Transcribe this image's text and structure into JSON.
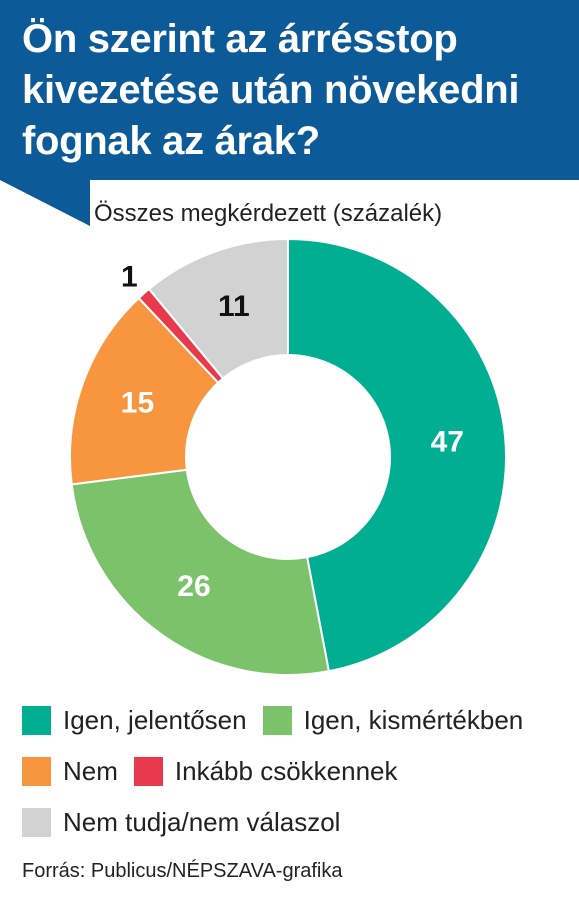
{
  "title": "Ön szerint az árrésstop kivezetése után növekedni fognak az árak?",
  "subtitle": "Összes megkérdezett (százalék)",
  "source": "Forrás: Publicus/NÉPSZAVA-grafika",
  "colors": {
    "header": "#0d5a99",
    "igen_jelentosen": "#00ae92",
    "igen_kismertekben": "#7cc26a",
    "nem": "#f7963f",
    "inkabb_csokkennek": "#e8394d",
    "nem_tudja": "#d2d2d2"
  },
  "chart_data": {
    "type": "pie",
    "style": "donut",
    "title": "Ön szerint az árrésstop kivezetése után növekedni fognak az árak?",
    "subtitle": "Összes megkérdezett (százalék)",
    "categories": [
      "Igen, jelentősen",
      "Igen, kismértékben",
      "Nem",
      "Inkább csökkennek",
      "Nem tudja/nem válaszol"
    ],
    "values": [
      47,
      26,
      15,
      1,
      11
    ],
    "colors": [
      "#00ae92",
      "#7cc26a",
      "#f7963f",
      "#e8394d",
      "#d2d2d2"
    ],
    "label_colors": [
      "#ffffff",
      "#ffffff",
      "#ffffff",
      "#111111",
      "#111111"
    ],
    "legend_placement": "bottom"
  }
}
